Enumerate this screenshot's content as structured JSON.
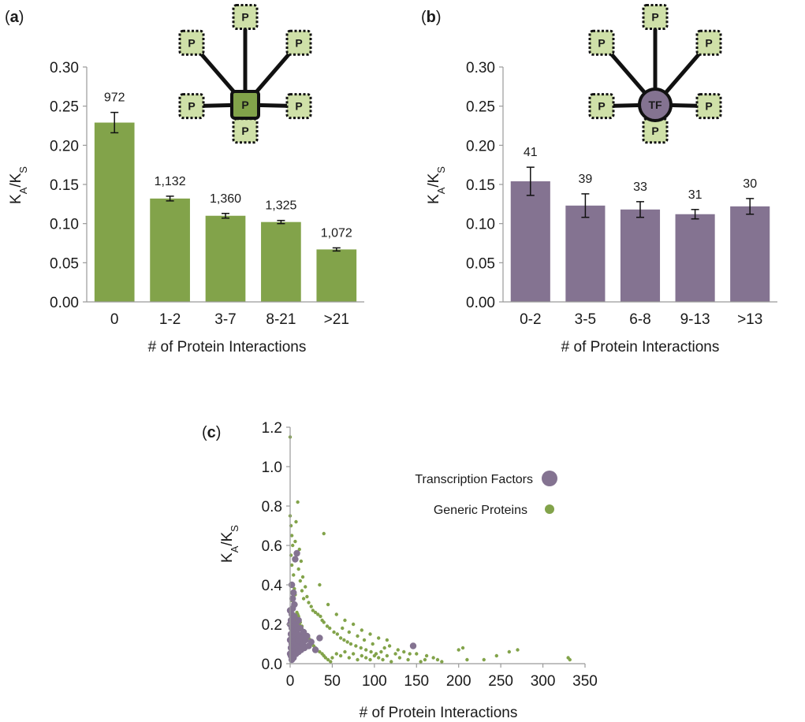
{
  "figure": {
    "panel_labels": [
      "a",
      "b",
      "c"
    ],
    "colors": {
      "green": "#82a34a",
      "purple": "#847391",
      "node_light_green": "#cfe0a8",
      "axis": "#9a9a9a",
      "text": "#1a1a1a"
    },
    "diagram_a": {
      "center_label": "P",
      "peripheral_label": "P"
    },
    "diagram_b": {
      "center_label": "TF",
      "peripheral_label": "P"
    }
  },
  "chart_data": [
    {
      "type": "bar",
      "panel": "a",
      "categories": [
        "0",
        "1-2",
        "3-7",
        "8-21",
        ">21"
      ],
      "values": [
        0.229,
        0.132,
        0.11,
        0.102,
        0.067
      ],
      "errors": [
        0.013,
        0.003,
        0.003,
        0.002,
        0.002
      ],
      "labels": [
        "972",
        "1,132",
        "1,360",
        "1,325",
        "1,072"
      ],
      "ylim": [
        0,
        0.3
      ],
      "yticks": [
        "0.00",
        "0.05",
        "0.10",
        "0.15",
        "0.20",
        "0.25",
        "0.30"
      ],
      "ylabel": {
        "main": "K",
        "sub1": "A",
        "sep": "/K",
        "sub2": "S"
      },
      "xlabel": "# of Protein Interactions",
      "color": "#82a34a",
      "grid": false
    },
    {
      "type": "bar",
      "panel": "b",
      "categories": [
        "0-2",
        "3-5",
        "6-8",
        "9-13",
        ">13"
      ],
      "values": [
        0.154,
        0.123,
        0.118,
        0.112,
        0.122
      ],
      "errors": [
        0.018,
        0.015,
        0.01,
        0.006,
        0.01
      ],
      "labels": [
        "41",
        "39",
        "33",
        "31",
        "30"
      ],
      "ylim": [
        0,
        0.3
      ],
      "yticks": [
        "0.00",
        "0.05",
        "0.10",
        "0.15",
        "0.20",
        "0.25",
        "0.30"
      ],
      "ylabel": {
        "main": "K",
        "sub1": "A",
        "sep": "/K",
        "sub2": "S"
      },
      "xlabel": "# of Protein Interactions",
      "color": "#847391",
      "grid": false
    },
    {
      "type": "scatter",
      "panel": "c",
      "xlim": [
        0,
        350
      ],
      "ylim": [
        0,
        1.2
      ],
      "xticks": [
        "0",
        "50",
        "100",
        "150",
        "200",
        "250",
        "300",
        "350"
      ],
      "yticks": [
        "0.0",
        "0.2",
        "0.4",
        "0.6",
        "0.8",
        "1.0",
        "1.2"
      ],
      "ylabel": {
        "main": "K",
        "sub1": "A",
        "sep": "/K",
        "sub2": "S"
      },
      "xlabel": "# of Protein Interactions",
      "legend_position": "top-right",
      "series": [
        {
          "name": "Transcription Factors",
          "color": "#847391",
          "points": [
            [
              0,
              0.05
            ],
            [
              0,
              0.12
            ],
            [
              0,
              0.2
            ],
            [
              0,
              0.27
            ],
            [
              1,
              0.08
            ],
            [
              1,
              0.15
            ],
            [
              1,
              0.22
            ],
            [
              1,
              0.04
            ],
            [
              2,
              0.1
            ],
            [
              2,
              0.18
            ],
            [
              2,
              0.25
            ],
            [
              2,
              0.02
            ],
            [
              3,
              0.06
            ],
            [
              3,
              0.13
            ],
            [
              3,
              0.21
            ],
            [
              3,
              0.28
            ],
            [
              4,
              0.09
            ],
            [
              4,
              0.16
            ],
            [
              4,
              0.03
            ],
            [
              5,
              0.11
            ],
            [
              5,
              0.19
            ],
            [
              5,
              0.24
            ],
            [
              6,
              0.07
            ],
            [
              6,
              0.14
            ],
            [
              6,
              0.53
            ],
            [
              7,
              0.05
            ],
            [
              7,
              0.12
            ],
            [
              7,
              0.2
            ],
            [
              8,
              0.1
            ],
            [
              8,
              0.17
            ],
            [
              8,
              0.56
            ],
            [
              9,
              0.08
            ],
            [
              9,
              0.15
            ],
            [
              10,
              0.12
            ],
            [
              10,
              0.06
            ],
            [
              10,
              0.22
            ],
            [
              11,
              0.09
            ],
            [
              11,
              0.14
            ],
            [
              12,
              0.11
            ],
            [
              12,
              0.18
            ],
            [
              13,
              0.07
            ],
            [
              14,
              0.13
            ],
            [
              15,
              0.1
            ],
            [
              16,
              0.16
            ],
            [
              17,
              0.08
            ],
            [
              18,
              0.12
            ],
            [
              20,
              0.14
            ],
            [
              22,
              0.09
            ],
            [
              25,
              0.11
            ],
            [
              30,
              0.07
            ],
            [
              35,
              0.13
            ],
            [
              5,
              0.3
            ],
            [
              3,
              0.33
            ],
            [
              4,
              0.36
            ],
            [
              2,
              0.4
            ],
            [
              146,
              0.09
            ]
          ]
        },
        {
          "name": "Generic Proteins",
          "color": "#82a34a",
          "points": [
            [
              0,
              1.15
            ],
            [
              0,
              0.75
            ],
            [
              1,
              0.7
            ],
            [
              2,
              0.65
            ],
            [
              3,
              0.6
            ],
            [
              1,
              0.55
            ],
            [
              2,
              0.5
            ],
            [
              4,
              0.45
            ],
            [
              3,
              0.4
            ],
            [
              5,
              0.38
            ],
            [
              6,
              0.35
            ],
            [
              2,
              0.32
            ],
            [
              7,
              0.3
            ],
            [
              4,
              0.28
            ],
            [
              8,
              0.26
            ],
            [
              9,
              0.25
            ],
            [
              10,
              0.24
            ],
            [
              6,
              0.22
            ],
            [
              12,
              0.21
            ],
            [
              11,
              0.2
            ],
            [
              14,
              0.19
            ],
            [
              3,
              0.18
            ],
            [
              15,
              0.17
            ],
            [
              16,
              0.16
            ],
            [
              18,
              0.15
            ],
            [
              20,
              0.14
            ],
            [
              22,
              0.13
            ],
            [
              24,
              0.12
            ],
            [
              13,
              0.11
            ],
            [
              26,
              0.1
            ],
            [
              28,
              0.09
            ],
            [
              30,
              0.08
            ],
            [
              32,
              0.07
            ],
            [
              35,
              0.06
            ],
            [
              38,
              0.05
            ],
            [
              40,
              0.04
            ],
            [
              42,
              0.03
            ],
            [
              45,
              0.02
            ],
            [
              48,
              0.01
            ],
            [
              50,
              0.03
            ],
            [
              55,
              0.05
            ],
            [
              60,
              0.04
            ],
            [
              65,
              0.06
            ],
            [
              70,
              0.03
            ],
            [
              75,
              0.05
            ],
            [
              80,
              0.02
            ],
            [
              85,
              0.04
            ],
            [
              90,
              0.03
            ],
            [
              95,
              0.02
            ],
            [
              100,
              0.04
            ],
            [
              105,
              0.03
            ],
            [
              110,
              0.02
            ],
            [
              120,
              0.01
            ],
            [
              130,
              0.03
            ],
            [
              140,
              0.02
            ],
            [
              150,
              0.05
            ],
            [
              155,
              0.01
            ],
            [
              160,
              0.02
            ],
            [
              170,
              0.03
            ],
            [
              180,
              0.01
            ],
            [
              200,
              0.07
            ],
            [
              205,
              0.08
            ],
            [
              210,
              0.02
            ],
            [
              230,
              0.02
            ],
            [
              245,
              0.04
            ],
            [
              260,
              0.06
            ],
            [
              270,
              0.07
            ],
            [
              330,
              0.03
            ],
            [
              332,
              0.02
            ],
            [
              9,
              0.82
            ],
            [
              7,
              0.72
            ],
            [
              6,
              0.62
            ],
            [
              11,
              0.58
            ],
            [
              13,
              0.52
            ],
            [
              10,
              0.48
            ],
            [
              15,
              0.44
            ],
            [
              12,
              0.42
            ],
            [
              18,
              0.39
            ],
            [
              14,
              0.37
            ],
            [
              20,
              0.34
            ],
            [
              16,
              0.33
            ],
            [
              22,
              0.31
            ],
            [
              25,
              0.29
            ],
            [
              27,
              0.27
            ],
            [
              30,
              0.26
            ],
            [
              33,
              0.25
            ],
            [
              36,
              0.24
            ],
            [
              38,
              0.22
            ],
            [
              40,
              0.21
            ],
            [
              44,
              0.19
            ],
            [
              47,
              0.18
            ],
            [
              52,
              0.16
            ],
            [
              56,
              0.15
            ],
            [
              60,
              0.13
            ],
            [
              64,
              0.12
            ],
            [
              68,
              0.11
            ],
            [
              72,
              0.1
            ],
            [
              78,
              0.09
            ],
            [
              84,
              0.08
            ],
            [
              90,
              0.07
            ],
            [
              96,
              0.06
            ],
            [
              102,
              0.05
            ],
            [
              108,
              0.06
            ],
            [
              115,
              0.04
            ],
            [
              125,
              0.05
            ],
            [
              40,
              0.66
            ],
            [
              35,
              0.4
            ],
            [
              45,
              0.3
            ],
            [
              55,
              0.25
            ],
            [
              65,
              0.22
            ],
            [
              75,
              0.2
            ],
            [
              85,
              0.17
            ],
            [
              95,
              0.15
            ],
            [
              105,
              0.13
            ],
            [
              115,
              0.12
            ],
            [
              118,
              0.09
            ],
            [
              62,
              0.18
            ],
            [
              70,
              0.16
            ],
            [
              80,
              0.14
            ],
            [
              88,
              0.12
            ],
            [
              98,
              0.1
            ],
            [
              112,
              0.08
            ],
            [
              128,
              0.07
            ],
            [
              135,
              0.06
            ],
            [
              142,
              0.05
            ],
            [
              162,
              0.04
            ],
            [
              175,
              0.02
            ]
          ]
        }
      ]
    }
  ]
}
